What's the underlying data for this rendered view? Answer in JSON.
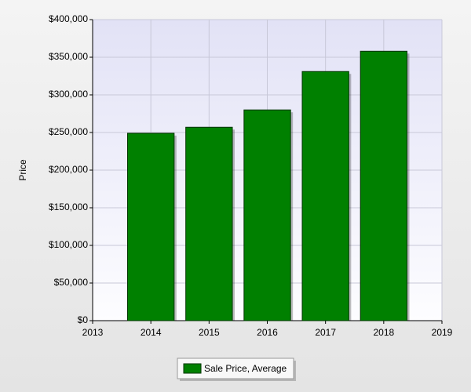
{
  "chart_data": {
    "type": "bar",
    "y_label": "Price",
    "x": [
      2014,
      2015,
      2016,
      2017,
      2018
    ],
    "series": [
      {
        "name": "Sale Price, Average",
        "color": "#008000",
        "values": [
          249000,
          257000,
          280000,
          331000,
          358000
        ]
      }
    ],
    "xlim": [
      2013,
      2019
    ],
    "xticks": [
      2013,
      2014,
      2015,
      2016,
      2017,
      2018,
      2019
    ],
    "ylim": [
      0,
      400000
    ],
    "yticks": [
      {
        "value": 0,
        "label": "$0"
      },
      {
        "value": 50000,
        "label": "$50,000"
      },
      {
        "value": 100000,
        "label": "$100,000"
      },
      {
        "value": 150000,
        "label": "$150,000"
      },
      {
        "value": 200000,
        "label": "$200,000"
      },
      {
        "value": 250000,
        "label": "$250,000"
      },
      {
        "value": 300000,
        "label": "$300,000"
      },
      {
        "value": 350000,
        "label": "$350,000"
      },
      {
        "value": 400000,
        "label": "$400,000"
      }
    ],
    "grid": true,
    "legend": "bottom"
  }
}
